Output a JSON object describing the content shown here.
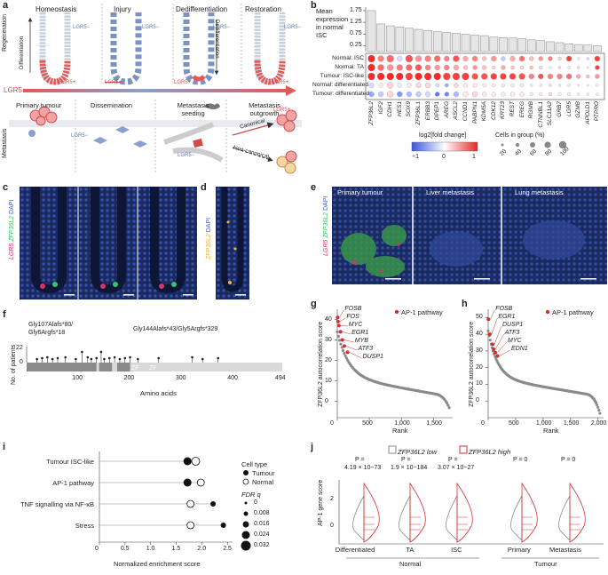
{
  "panels": {
    "a": "a",
    "b": "b",
    "c": "c",
    "d": "d",
    "e": "e",
    "f": "f",
    "g": "g",
    "h": "h",
    "i": "i",
    "j": "j"
  },
  "panel_a": {
    "stages": [
      "Homeostasis",
      "Injury",
      "Dedifferentiation",
      "Restoration"
    ],
    "row_regeneration": "Regeneration",
    "row_metastasis": "Metastasis",
    "arrow_label": "LGR5",
    "differentiation": "Differentiation",
    "dedifferentiation": "Dedifferentiation",
    "lgr5_plus": "LGR5+",
    "lgr5_minus": "LGR5−",
    "met_stages": [
      "Primary tumour",
      "Dissemination",
      "Metastasis seeding",
      "Metastasis outgrowth"
    ],
    "canonical": "Canonical",
    "non_canonical": "Non-canonical"
  },
  "panel_b": {
    "ylabel": "Mean expression in normal ISC",
    "yticks": [
      "1.75",
      "1.25",
      "0.75",
      "0.25"
    ],
    "genes": [
      "ZFP36L2",
      "IGF2",
      "CDH1",
      "HES1",
      "SOX9",
      "ZFP36L1",
      "ERBB3",
      "DPEP1",
      "AREG",
      "ASCL2",
      "CCND1",
      "PABPN1",
      "KDM5A",
      "CDK12",
      "KRT23",
      "REST",
      "EREG",
      "RGMB",
      "CTNNBL1",
      "SLC11A2",
      "GRB7",
      "LGR5",
      "GZMB",
      "APOLD1",
      "PTPRO"
    ],
    "bar_values": [
      1.75,
      1.18,
      1.1,
      1.05,
      1.0,
      0.95,
      0.9,
      0.85,
      0.82,
      0.78,
      0.74,
      0.7,
      0.68,
      0.62,
      0.6,
      0.58,
      0.55,
      0.5,
      0.47,
      0.42,
      0.38,
      0.33,
      0.3,
      0.28,
      0.25
    ],
    "groups": [
      "Normal: ISC",
      "Normal: TA",
      "Tumour: ISC-like",
      "Normal: differentiated",
      "Tumour: differentiated"
    ],
    "colorbar_label": "log2[fold change]",
    "colorbar_ticks": [
      "−1",
      "0",
      "1"
    ],
    "size_label": "Cells in group (%)",
    "size_ticks": [
      "20",
      "40",
      "60",
      "80",
      "100"
    ]
  },
  "panel_c": {
    "label_lgr5": "LGR5",
    "label_zfp": "ZFP36L2",
    "label_dapi": "DAPI"
  },
  "panel_d": {
    "label_zfp": "ZFP36L2",
    "label_dapi": "DAPI"
  },
  "panel_e": {
    "titles": [
      "Primary tumour",
      "Liver metastasis",
      "Lung metastasis"
    ],
    "label_lgr5": "LGR5",
    "label_zfp": "ZFP36L2",
    "label_dapi": "DAPI"
  },
  "panel_f": {
    "ylabel": "No. of patients",
    "yticks": [
      "22",
      "0"
    ],
    "xticks": [
      "100",
      "200",
      "300",
      "400"
    ],
    "xmax": "494",
    "xlabel": "Amino acids",
    "ann1": "Gly107Alafs*80/",
    "ann2": "Gly6Argfs*18",
    "ann3": "Gly144Alafs*43/Gly5Argfs*329",
    "zf": "ZF"
  },
  "panel_g": {
    "ylabel": "ZFP36L2 autocorrelation score",
    "xlabel": "Rank",
    "yticks": [
      "40",
      "30",
      "20",
      "10",
      "0"
    ],
    "xticks": [
      "0",
      "500",
      "1,000",
      "1,500"
    ],
    "legend": "AP-1 pathway",
    "genes": [
      "FOSB",
      "FOS",
      "MYC",
      "EGR1",
      "MYB",
      "ATF3",
      "DUSP1"
    ]
  },
  "panel_h": {
    "ylabel": "ZFP36L2 autocorrelation score",
    "xlabel": "Rank",
    "yticks": [
      "50",
      "40",
      "30",
      "20",
      "10",
      "0"
    ],
    "xticks": [
      "0",
      "500",
      "1,000",
      "1,500",
      "2,000"
    ],
    "legend": "AP-1 pathway",
    "genes": [
      "FOSB",
      "EGR1",
      "DUSP1",
      "ATF3",
      "MYC",
      "EDN1"
    ]
  },
  "panel_i": {
    "xlabel": "Normalized enrichment score",
    "xticks": [
      "0",
      "0.5",
      "1.0",
      "1.5",
      "2.0",
      "2.5"
    ],
    "pathways": [
      "Tumour ISC-like",
      "AP-1 pathway",
      "TNF signalling via NF-κB",
      "Stress"
    ],
    "legend_title": "Cell type",
    "legend_items": [
      "Tumour",
      "Normal"
    ],
    "fdr_title": "FDR q",
    "fdr_ticks": [
      "0",
      "0.008",
      "0.016",
      "0.024",
      "0.032"
    ]
  },
  "panel_j": {
    "ylabel": "AP-1 gene score",
    "legend_low": "ZFP36L2 low",
    "legend_high": "ZFP36L2 high",
    "yticks": [
      "2",
      "0"
    ],
    "groups": [
      "Differentiated",
      "TA",
      "ISC",
      "Primary",
      "Metastasis"
    ],
    "group_labels": [
      "Normal",
      "Tumour"
    ],
    "pvalues": [
      "P =\n4.19 × 10−73",
      "P =\n1.9 × 10−184",
      "P =\n3.07 × 10−27",
      "P = 0",
      "P = 0"
    ]
  },
  "chart_data": [
    {
      "type": "bar",
      "title": "",
      "ylabel": "Mean expression in normal ISC",
      "categories": [
        "ZFP36L2",
        "IGF2",
        "CDH1",
        "HES1",
        "SOX9",
        "ZFP36L1",
        "ERBB3",
        "DPEP1",
        "AREG",
        "ASCL2",
        "CCND1",
        "PABPN1",
        "KDM5A",
        "CDK12",
        "KRT23",
        "REST",
        "EREG",
        "RGMB",
        "CTNNBL1",
        "SLC11A2",
        "GRB7",
        "LGR5",
        "GZMB",
        "APOLD1",
        "PTPRO"
      ],
      "values": [
        1.75,
        1.18,
        1.1,
        1.05,
        1.0,
        0.95,
        0.9,
        0.85,
        0.82,
        0.78,
        0.74,
        0.7,
        0.68,
        0.62,
        0.6,
        0.58,
        0.55,
        0.5,
        0.47,
        0.42,
        0.38,
        0.33,
        0.3,
        0.28,
        0.25
      ],
      "ylim": [
        0,
        1.9
      ]
    },
    {
      "type": "scatter",
      "xlabel": "Rank",
      "ylabel": "ZFP36L2 autocorrelation score",
      "xlim": [
        0,
        1800
      ],
      "ylim": [
        -8,
        45
      ],
      "series": [
        {
          "name": "AP-1 pathway",
          "points": [
            [
              5,
              41
            ],
            [
              12,
              39
            ],
            [
              25,
              37
            ],
            [
              50,
              34
            ],
            [
              80,
              30
            ],
            [
              110,
              27
            ],
            [
              160,
              24
            ]
          ]
        }
      ]
    },
    {
      "type": "scatter",
      "xlabel": "Rank",
      "ylabel": "ZFP36L2 autocorrelation score",
      "xlim": [
        0,
        2100
      ],
      "ylim": [
        -10,
        55
      ],
      "series": [
        {
          "name": "AP-1 pathway",
          "points": [
            [
              5,
              49
            ],
            [
              30,
              40
            ],
            [
              80,
              34
            ],
            [
              100,
              31
            ],
            [
              130,
              29
            ],
            [
              170,
              27
            ]
          ]
        }
      ]
    },
    {
      "type": "scatter",
      "xlabel": "Normalized enrichment score",
      "xlim": [
        0,
        2.6
      ],
      "categories": [
        "Tumour ISC-like",
        "AP-1 pathway",
        "TNF signalling via NF-κB",
        "Stress"
      ],
      "series": [
        {
          "name": "Tumour",
          "values": [
            1.72,
            1.72,
            2.22,
            2.42
          ]
        },
        {
          "name": "Normal",
          "values": [
            1.88,
            1.98,
            1.78,
            1.78
          ]
        }
      ]
    }
  ]
}
